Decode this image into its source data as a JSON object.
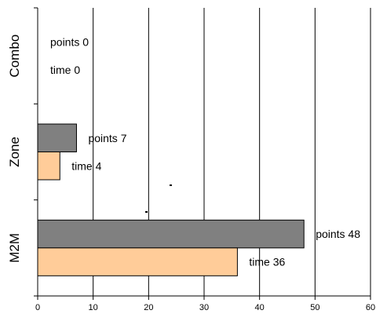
{
  "chart_data": {
    "type": "bar",
    "orientation": "horizontal",
    "categories": [
      "M2M",
      "Zone",
      "Combo"
    ],
    "series": [
      {
        "key": "points",
        "values": [
          48,
          7,
          0
        ],
        "color": "#808080",
        "labels": [
          "points 48",
          "points 7",
          "points 0"
        ]
      },
      {
        "key": "time",
        "values": [
          36,
          4,
          0
        ],
        "color": "#ffcc99",
        "labels": [
          "time 36",
          "time 4",
          "time 0"
        ]
      }
    ],
    "xlim": [
      0,
      60
    ],
    "x_ticks": [
      "0",
      "10",
      "20",
      "30",
      "40",
      "50",
      "60"
    ],
    "grid": "vertical",
    "title": "",
    "xlabel": "",
    "ylabel": ""
  }
}
